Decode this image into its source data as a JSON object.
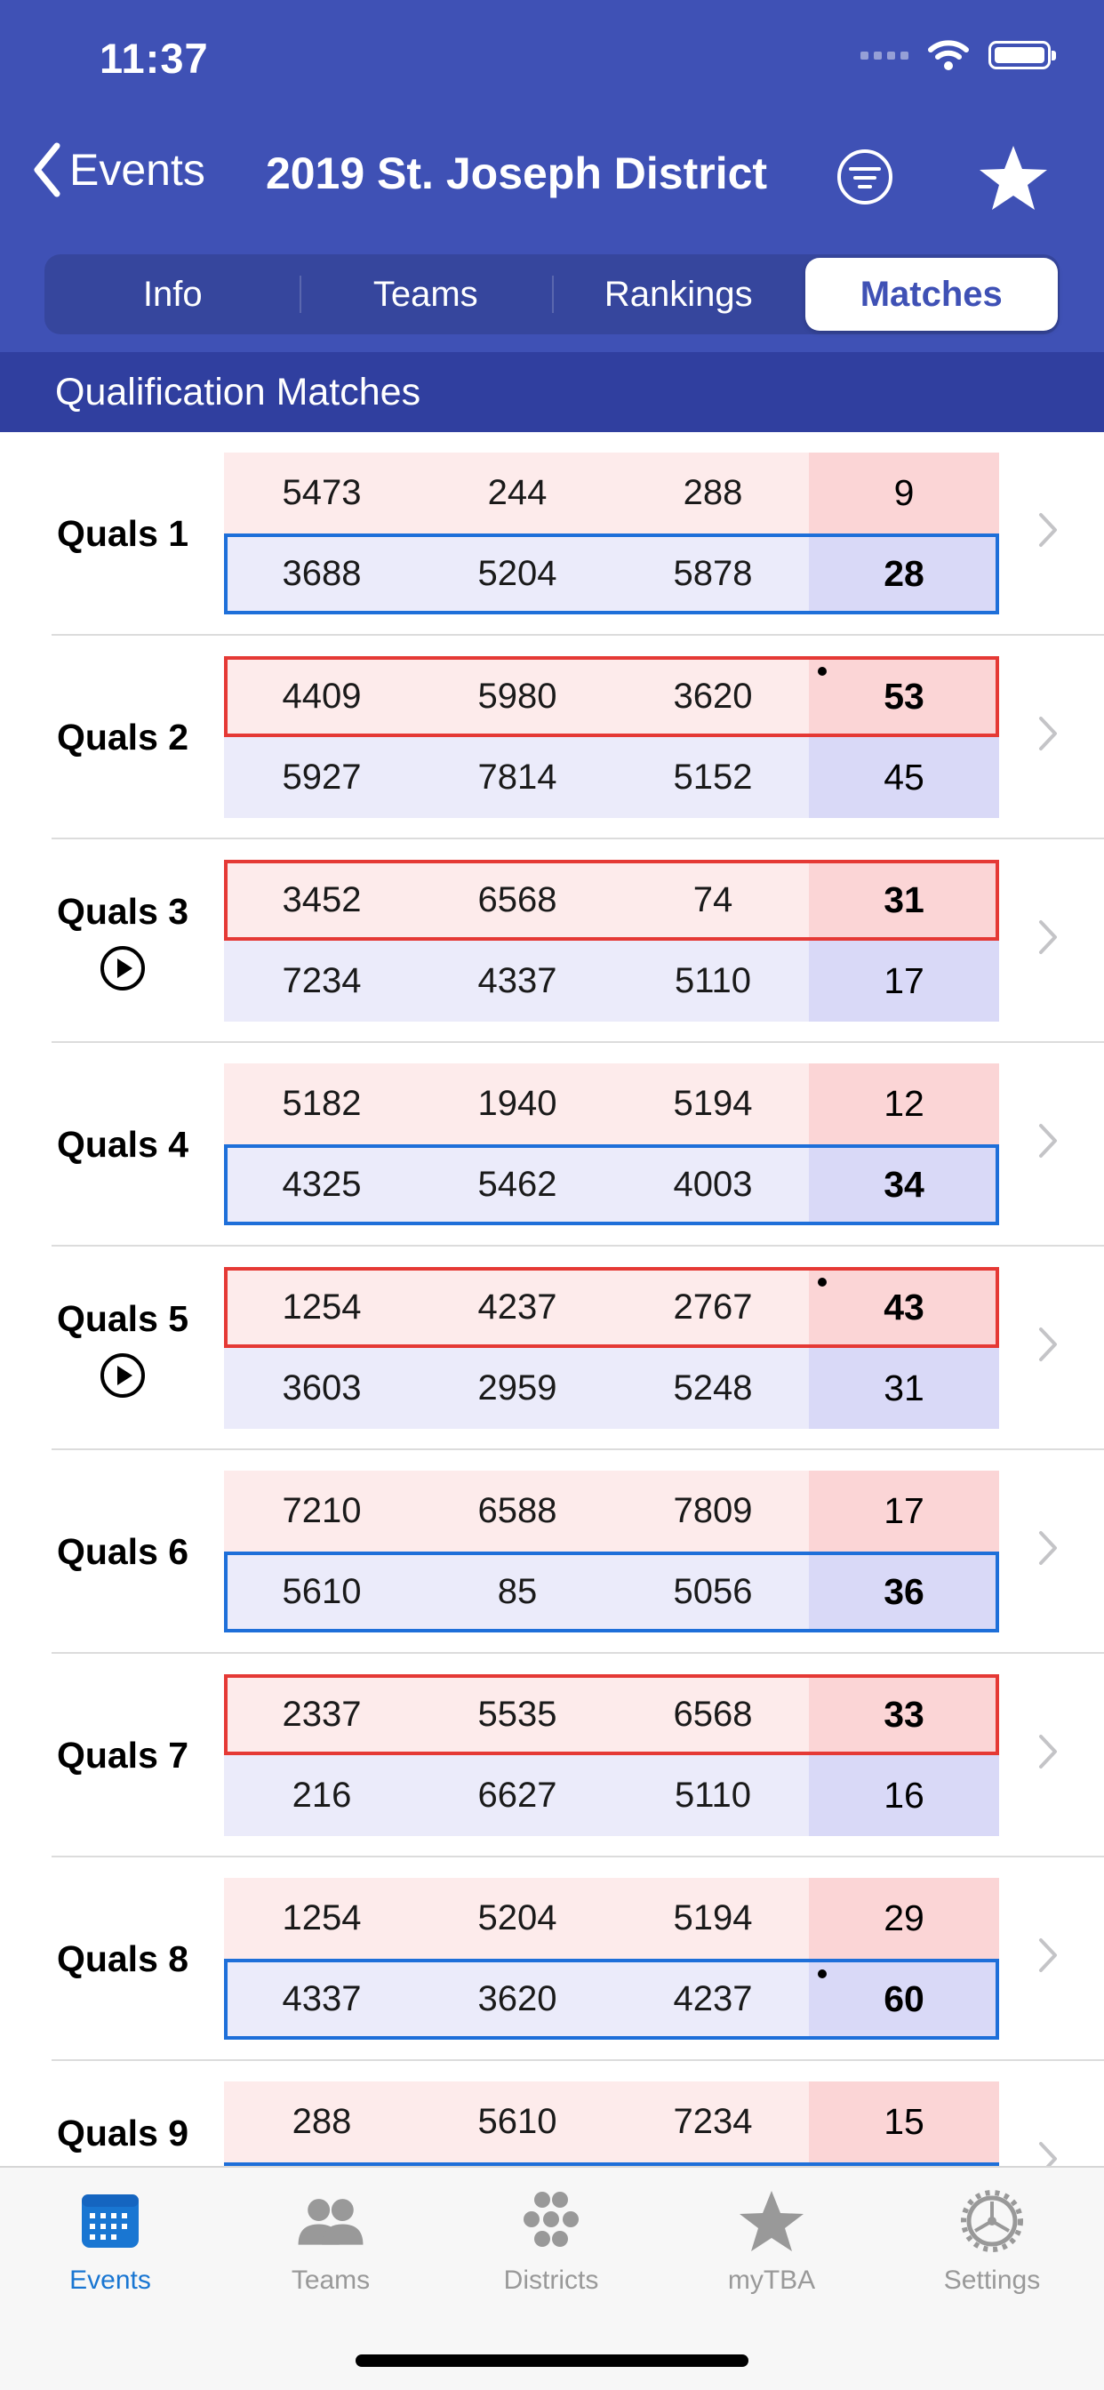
{
  "status_bar": {
    "time": "11:37"
  },
  "nav": {
    "back_label": "Events",
    "title": "2019 St. Joseph District"
  },
  "segments": [
    "Info",
    "Teams",
    "Rankings",
    "Matches"
  ],
  "active_segment": "Matches",
  "section_header": "Qualification Matches",
  "matches": [
    {
      "name": "Quals 1",
      "video": false,
      "red": {
        "teams": [
          "5473",
          "244",
          "288"
        ],
        "score": "9",
        "win": false,
        "rp_dot": false
      },
      "blue": {
        "teams": [
          "3688",
          "5204",
          "5878"
        ],
        "score": "28",
        "win": true,
        "rp_dot": false
      }
    },
    {
      "name": "Quals 2",
      "video": false,
      "red": {
        "teams": [
          "4409",
          "5980",
          "3620"
        ],
        "score": "53",
        "win": true,
        "rp_dot": true
      },
      "blue": {
        "teams": [
          "5927",
          "7814",
          "5152"
        ],
        "score": "45",
        "win": false,
        "rp_dot": false
      }
    },
    {
      "name": "Quals 3",
      "video": true,
      "red": {
        "teams": [
          "3452",
          "6568",
          "74"
        ],
        "score": "31",
        "win": true,
        "rp_dot": false
      },
      "blue": {
        "teams": [
          "7234",
          "4337",
          "5110"
        ],
        "score": "17",
        "win": false,
        "rp_dot": false
      }
    },
    {
      "name": "Quals 4",
      "video": false,
      "red": {
        "teams": [
          "5182",
          "1940",
          "5194"
        ],
        "score": "12",
        "win": false,
        "rp_dot": false
      },
      "blue": {
        "teams": [
          "4325",
          "5462",
          "4003"
        ],
        "score": "34",
        "win": true,
        "rp_dot": false
      }
    },
    {
      "name": "Quals 5",
      "video": true,
      "red": {
        "teams": [
          "1254",
          "4237",
          "2767"
        ],
        "score": "43",
        "win": true,
        "rp_dot": true
      },
      "blue": {
        "teams": [
          "3603",
          "2959",
          "5248"
        ],
        "score": "31",
        "win": false,
        "rp_dot": false
      }
    },
    {
      "name": "Quals 6",
      "video": false,
      "red": {
        "teams": [
          "7210",
          "6588",
          "7809"
        ],
        "score": "17",
        "win": false,
        "rp_dot": false
      },
      "blue": {
        "teams": [
          "5610",
          "85",
          "5056"
        ],
        "score": "36",
        "win": true,
        "rp_dot": false
      }
    },
    {
      "name": "Quals 7",
      "video": false,
      "red": {
        "teams": [
          "2337",
          "5535",
          "6568"
        ],
        "score": "33",
        "win": true,
        "rp_dot": false
      },
      "blue": {
        "teams": [
          "216",
          "6627",
          "5110"
        ],
        "score": "16",
        "win": false,
        "rp_dot": false
      }
    },
    {
      "name": "Quals 8",
      "video": false,
      "red": {
        "teams": [
          "1254",
          "5204",
          "5194"
        ],
        "score": "29",
        "win": false,
        "rp_dot": false
      },
      "blue": {
        "teams": [
          "4337",
          "3620",
          "4237"
        ],
        "score": "60",
        "win": true,
        "rp_dot": true
      }
    },
    {
      "name": "Quals 9",
      "video": true,
      "red": {
        "teams": [
          "288",
          "5610",
          "7234"
        ],
        "score": "15",
        "win": false,
        "rp_dot": false
      },
      "blue": {
        "teams": [
          "",
          "",
          ""
        ],
        "score": "",
        "win": true,
        "rp_dot": false
      }
    }
  ],
  "tabs": [
    {
      "label": "Events",
      "icon": "calendar-icon",
      "active": true
    },
    {
      "label": "Teams",
      "icon": "people-icon",
      "active": false
    },
    {
      "label": "Districts",
      "icon": "dots-cluster-icon",
      "active": false
    },
    {
      "label": "myTBA",
      "icon": "star-icon",
      "active": false
    },
    {
      "label": "Settings",
      "icon": "gear-icon",
      "active": false
    }
  ],
  "colors": {
    "nav_bg": "#3f51b5",
    "section_bg": "#303f9f",
    "red_alliance": "#e53935",
    "blue_alliance": "#1e6fd9",
    "tab_active": "#1976d2"
  }
}
